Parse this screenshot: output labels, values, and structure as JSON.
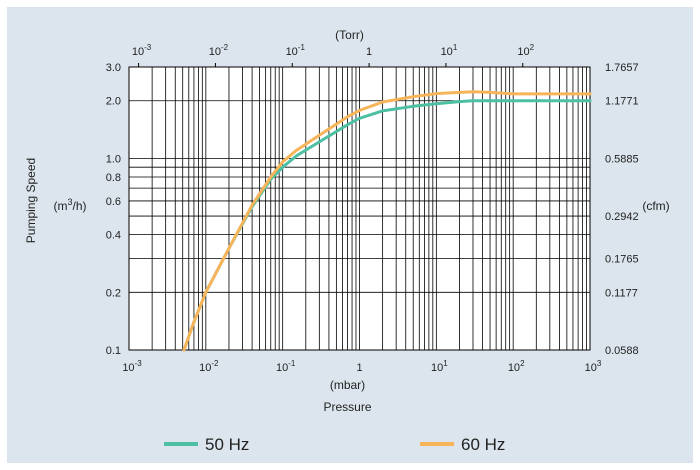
{
  "chart_data": {
    "type": "line",
    "title": "",
    "x_label_bottom": "Pressure",
    "x_unit_bottom": "(mbar)",
    "x_unit_top": "(Torr)",
    "y_label_left": "Pumping Speed",
    "y_unit_left": "(m3/h)",
    "y_unit_right": "(cfm)",
    "x_scale": "log",
    "y_scale": "log",
    "xlim": [
      0.001,
      1000
    ],
    "ylim": [
      0.1,
      3.0
    ],
    "grid": true,
    "legend_position": "bottom",
    "x_ticks_bottom": [
      {
        "value": 0.001,
        "base": "10",
        "exp": "-3"
      },
      {
        "value": 0.01,
        "base": "10",
        "exp": "-2"
      },
      {
        "value": 0.1,
        "base": "10",
        "exp": "-1"
      },
      {
        "value": 1,
        "base": "1",
        "exp": ""
      },
      {
        "value": 10,
        "base": "10",
        "exp": "1"
      },
      {
        "value": 100,
        "base": "10",
        "exp": "2"
      },
      {
        "value": 1000,
        "base": "10",
        "exp": "3"
      }
    ],
    "x_ticks_top": [
      {
        "value_mbar": 0.001333,
        "base": "10",
        "exp": "-3"
      },
      {
        "value_mbar": 0.01333,
        "base": "10",
        "exp": "-2"
      },
      {
        "value_mbar": 0.1333,
        "base": "10",
        "exp": "-1"
      },
      {
        "value_mbar": 1.333,
        "base": "1",
        "exp": ""
      },
      {
        "value_mbar": 13.33,
        "base": "10",
        "exp": "1"
      },
      {
        "value_mbar": 133.3,
        "base": "10",
        "exp": "2"
      }
    ],
    "y_ticks_left": [
      {
        "value": 0.1,
        "label": "0.1"
      },
      {
        "value": 0.2,
        "label": "0.2"
      },
      {
        "value": 0.4,
        "label": "0.4"
      },
      {
        "value": 0.6,
        "label": "0.6"
      },
      {
        "value": 0.8,
        "label": "0.8"
      },
      {
        "value": 1.0,
        "label": "1.0"
      },
      {
        "value": 2.0,
        "label": "2.0"
      },
      {
        "value": 3.0,
        "label": "3.0"
      }
    ],
    "y_ticks_right": [
      {
        "value": 0.1,
        "label": "0.0588"
      },
      {
        "value": 0.2,
        "label": "0.1177"
      },
      {
        "value": 0.3,
        "label": "0.1765"
      },
      {
        "value": 0.5,
        "label": "0.2942"
      },
      {
        "value": 1.0,
        "label": "0.5885"
      },
      {
        "value": 2.0,
        "label": "1.1771"
      },
      {
        "value": 3.0,
        "label": "1.7657"
      }
    ],
    "series": [
      {
        "name": "50 Hz",
        "color": "#4dbfa3",
        "points": [
          [
            0.0052,
            0.1
          ],
          [
            0.007,
            0.14
          ],
          [
            0.01,
            0.2
          ],
          [
            0.02,
            0.34
          ],
          [
            0.04,
            0.56
          ],
          [
            0.07,
            0.78
          ],
          [
            0.1,
            0.9
          ],
          [
            0.15,
            1.03
          ],
          [
            0.3,
            1.22
          ],
          [
            0.7,
            1.5
          ],
          [
            1,
            1.62
          ],
          [
            2,
            1.77
          ],
          [
            5,
            1.87
          ],
          [
            10,
            1.93
          ],
          [
            20,
            1.98
          ],
          [
            30,
            2.0
          ],
          [
            100,
            2.0
          ],
          [
            1000,
            2.0
          ]
        ]
      },
      {
        "name": "60 Hz",
        "color": "#f7b459",
        "points": [
          [
            0.0052,
            0.1
          ],
          [
            0.007,
            0.14
          ],
          [
            0.01,
            0.2
          ],
          [
            0.02,
            0.34
          ],
          [
            0.04,
            0.57
          ],
          [
            0.07,
            0.8
          ],
          [
            0.1,
            0.96
          ],
          [
            0.15,
            1.1
          ],
          [
            0.3,
            1.32
          ],
          [
            0.7,
            1.65
          ],
          [
            1,
            1.78
          ],
          [
            2,
            1.97
          ],
          [
            5,
            2.1
          ],
          [
            10,
            2.18
          ],
          [
            20,
            2.21
          ],
          [
            30,
            2.23
          ],
          [
            50,
            2.21
          ],
          [
            100,
            2.17
          ],
          [
            1000,
            2.17
          ]
        ]
      }
    ]
  }
}
